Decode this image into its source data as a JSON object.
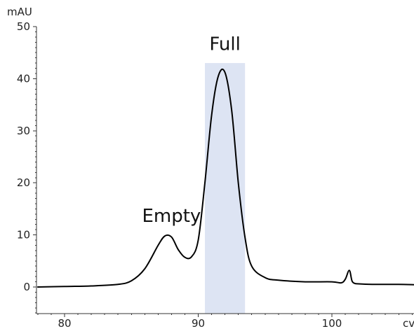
{
  "chart_data": {
    "type": "line",
    "title": "",
    "xlabel": "cv",
    "ylabel": "mAU",
    "xlim": [
      78,
      110
    ],
    "ylim": [
      -5,
      50
    ],
    "x_ticks": [
      80,
      90,
      100
    ],
    "y_ticks": [
      0,
      10,
      20,
      30,
      40,
      50
    ],
    "x_tick_labels": [
      "80",
      "90",
      "100"
    ],
    "y_tick_labels": [
      "0",
      "10",
      "20",
      "30",
      "40",
      "50"
    ],
    "grid": false,
    "legend": "none",
    "colors": {
      "trace": "#000000",
      "highlight": "#dde4f3"
    },
    "highlight_region": {
      "x_start": 90.5,
      "x_end": 93.5,
      "y_top": 43,
      "label": "Full"
    },
    "annotations": [
      {
        "text": "Empty",
        "x": 88.0,
        "y": 12.5
      },
      {
        "text": "Full",
        "x": 92.0,
        "y": 45.5
      }
    ],
    "series": [
      {
        "x": [
          78,
          80,
          82,
          84,
          85,
          86,
          87,
          87.5,
          88,
          88.5,
          89,
          89.5,
          90,
          90.5,
          91,
          91.5,
          92,
          92.5,
          93,
          93.5,
          94,
          95,
          96,
          98,
          100,
          100.7,
          101,
          101.3,
          101.5,
          101.7,
          102,
          103,
          105,
          107,
          110
        ],
        "values": [
          0.0,
          0.1,
          0.2,
          0.5,
          1.2,
          3.5,
          8.0,
          9.8,
          9.6,
          7.2,
          5.7,
          5.8,
          9.0,
          20.0,
          33.0,
          40.5,
          41.2,
          34.0,
          20.0,
          9.5,
          4.0,
          1.8,
          1.3,
          1.0,
          1.0,
          0.8,
          1.5,
          3.2,
          1.2,
          0.7,
          0.6,
          0.5,
          0.5,
          0.4,
          0.3
        ]
      }
    ]
  }
}
